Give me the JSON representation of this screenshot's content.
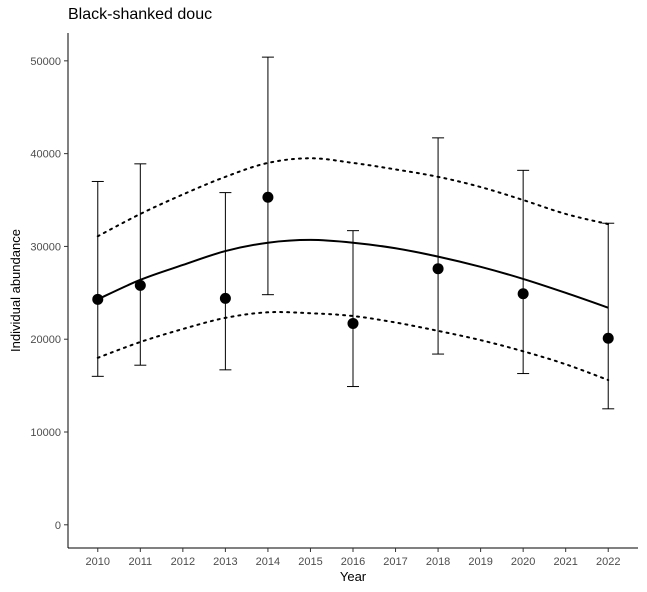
{
  "chart_data": {
    "type": "scatter",
    "title": "Black-shanked douc",
    "xlabel": "Year",
    "ylabel": "Individual abundance",
    "xlim": [
      2009.3,
      2022.7
    ],
    "ylim": [
      -2500,
      53000
    ],
    "x_ticks": [
      2010,
      2011,
      2012,
      2013,
      2014,
      2015,
      2016,
      2017,
      2018,
      2019,
      2020,
      2021,
      2022
    ],
    "y_ticks": [
      0,
      10000,
      20000,
      30000,
      40000,
      50000
    ],
    "grid": false,
    "legend": "none",
    "points": [
      {
        "x": 2010,
        "y": 24300,
        "lower": 16000,
        "upper": 37000
      },
      {
        "x": 2011,
        "y": 25800,
        "lower": 17200,
        "upper": 38900
      },
      {
        "x": 2013,
        "y": 24400,
        "lower": 16700,
        "upper": 35800
      },
      {
        "x": 2014,
        "y": 35300,
        "lower": 24800,
        "upper": 50400
      },
      {
        "x": 2016,
        "y": 21700,
        "lower": 14900,
        "upper": 31700
      },
      {
        "x": 2018,
        "y": 27600,
        "lower": 18400,
        "upper": 41700
      },
      {
        "x": 2020,
        "y": 24900,
        "lower": 16300,
        "upper": 38200
      },
      {
        "x": 2022,
        "y": 20100,
        "lower": 12500,
        "upper": 32500
      }
    ],
    "trend": {
      "x": [
        2010,
        2011,
        2012,
        2013,
        2014,
        2015,
        2016,
        2017,
        2018,
        2019,
        2020,
        2021,
        2022
      ],
      "fit": [
        24300,
        26400,
        28000,
        29500,
        30400,
        30700,
        30400,
        29800,
        28900,
        27800,
        26500,
        25000,
        23400
      ],
      "upper": [
        31100,
        33500,
        35600,
        37500,
        39000,
        39500,
        39000,
        38300,
        37500,
        36400,
        35000,
        33500,
        32400
      ],
      "lower": [
        18000,
        19700,
        21100,
        22300,
        22900,
        22800,
        22500,
        21800,
        20900,
        19900,
        18700,
        17300,
        15600
      ]
    }
  }
}
